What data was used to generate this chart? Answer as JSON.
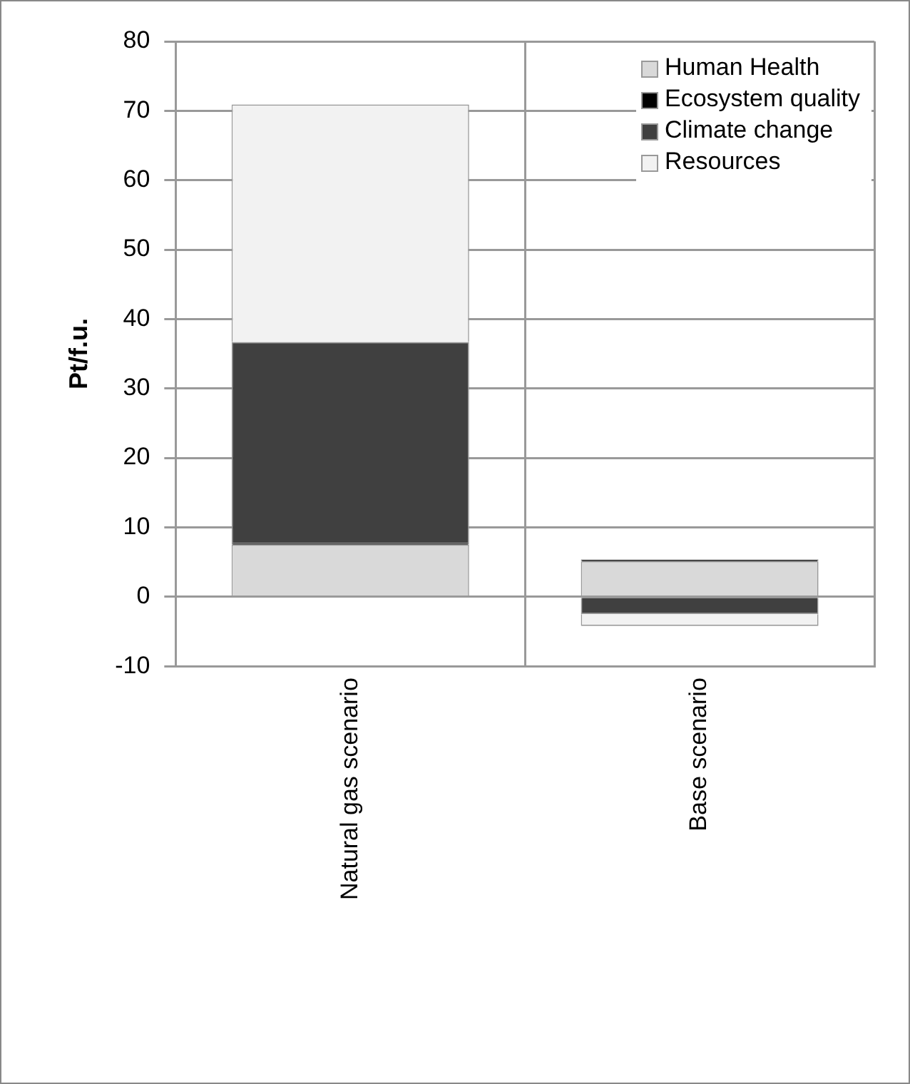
{
  "chart_data": {
    "type": "bar",
    "stacked": true,
    "ylabel": "Pt/f.u.",
    "categories": [
      "Natural gas scenario",
      "Base scenario"
    ],
    "series": [
      {
        "name": "Human Health",
        "color": "#d9d9d9",
        "values": [
          7.5,
          5.1
        ]
      },
      {
        "name": "Ecosystem quality",
        "color": "#000000",
        "values": [
          0.3,
          0.3
        ]
      },
      {
        "name": "Climate change",
        "color": "#404040",
        "values": [
          28.9,
          -2.5
        ]
      },
      {
        "name": "Resources",
        "color": "#f2f2f2",
        "values": [
          34.2,
          -1.7
        ]
      }
    ],
    "ylim": [
      -10,
      80
    ],
    "yticks": [
      -10,
      0,
      10,
      20,
      30,
      40,
      50,
      60,
      70,
      80
    ],
    "grid": true,
    "legend": "top right"
  }
}
